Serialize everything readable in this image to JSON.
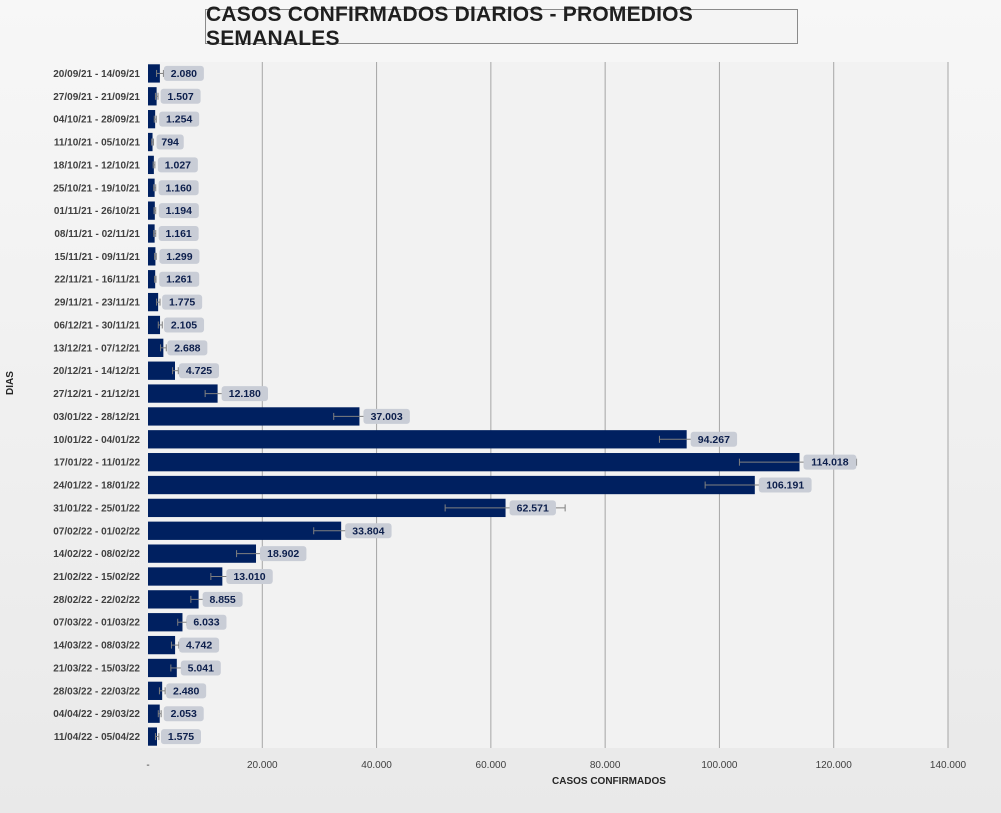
{
  "chart_data": {
    "type": "bar",
    "orientation": "horizontal",
    "title": "CASOS CONFIRMADOS DIARIOS - PROMEDIOS SEMANALES",
    "xlabel": "CASOS CONFIRMADOS",
    "ylabel": "DIAS",
    "xlim": [
      0,
      140000
    ],
    "x_ticks": [
      0,
      20000,
      40000,
      60000,
      80000,
      100000,
      120000,
      140000
    ],
    "x_tick_labels": [
      "-",
      "20.000",
      "40.000",
      "60.000",
      "80.000",
      "100.000",
      "120.000",
      "140.000"
    ],
    "grid": "vertical",
    "error_bars": true,
    "bar_color": "#002060",
    "label_background": "#c9cdd6",
    "categories": [
      "20/09/21 - 14/09/21",
      "27/09/21 - 21/09/21",
      "04/10/21 - 28/09/21",
      "11/10/21 - 05/10/21",
      "18/10/21 - 12/10/21",
      "25/10/21 - 19/10/21",
      "01/11/21 - 26/10/21",
      "08/11/21 - 02/11/21",
      "15/11/21 - 09/11/21",
      "22/11/21 - 16/11/21",
      "29/11/21 - 23/11/21",
      "06/12/21 - 30/11/21",
      "13/12/21 - 07/12/21",
      "20/12/21 - 14/12/21",
      "27/12/21 - 21/12/21",
      "03/01/22 - 28/12/21",
      "10/01/22 - 04/01/22",
      "17/01/22 - 11/01/22",
      "24/01/22 - 18/01/22",
      "31/01/22 - 25/01/22",
      "07/02/22 - 01/02/22",
      "14/02/22 - 08/02/22",
      "21/02/22 - 15/02/22",
      "28/02/22 - 22/02/22",
      "07/03/22 - 01/03/22",
      "14/03/22 - 08/03/22",
      "21/03/22 - 15/03/22",
      "28/03/22 - 22/03/22",
      "04/04/22 - 29/03/22",
      "11/04/22 - 05/04/22"
    ],
    "values": [
      2080,
      1507,
      1254,
      794,
      1027,
      1160,
      1194,
      1161,
      1299,
      1261,
      1775,
      2105,
      2688,
      4725,
      12180,
      37003,
      94267,
      114018,
      106191,
      62571,
      33804,
      18902,
      13010,
      8855,
      6033,
      4742,
      5041,
      2480,
      2053,
      1575
    ],
    "value_labels": [
      "2.080",
      "1.507",
      "1.254",
      "794",
      "1.027",
      "1.160",
      "1.194",
      "1.161",
      "1.299",
      "1.261",
      "1.775",
      "2.105",
      "2.688",
      "4.725",
      "12.180",
      "37.003",
      "94.267",
      "114.018",
      "106.191",
      "62.571",
      "33.804",
      "18.902",
      "13.010",
      "8.855",
      "6.033",
      "4.742",
      "5.041",
      "2.480",
      "2.053",
      "1.575"
    ],
    "error_ranges": [
      [
        1500,
        2700
      ],
      [
        1300,
        1750
      ],
      [
        1100,
        1450
      ],
      [
        650,
        950
      ],
      [
        900,
        1200
      ],
      [
        1000,
        1350
      ],
      [
        1050,
        1350
      ],
      [
        1000,
        1350
      ],
      [
        1150,
        1450
      ],
      [
        1150,
        1400
      ],
      [
        1500,
        2100
      ],
      [
        1800,
        2500
      ],
      [
        2200,
        3200
      ],
      [
        4300,
        5300
      ],
      [
        10000,
        14000
      ],
      [
        32500,
        42000
      ],
      [
        89500,
        99000
      ],
      [
        103500,
        124000
      ],
      [
        97500,
        115500
      ],
      [
        52000,
        73000
      ],
      [
        29000,
        38500
      ],
      [
        15500,
        22000
      ],
      [
        11000,
        15000
      ],
      [
        7500,
        10200
      ],
      [
        5200,
        6800
      ],
      [
        4100,
        5400
      ],
      [
        4000,
        6000
      ],
      [
        2000,
        3000
      ],
      [
        1800,
        2300
      ],
      [
        1300,
        1900
      ]
    ]
  }
}
